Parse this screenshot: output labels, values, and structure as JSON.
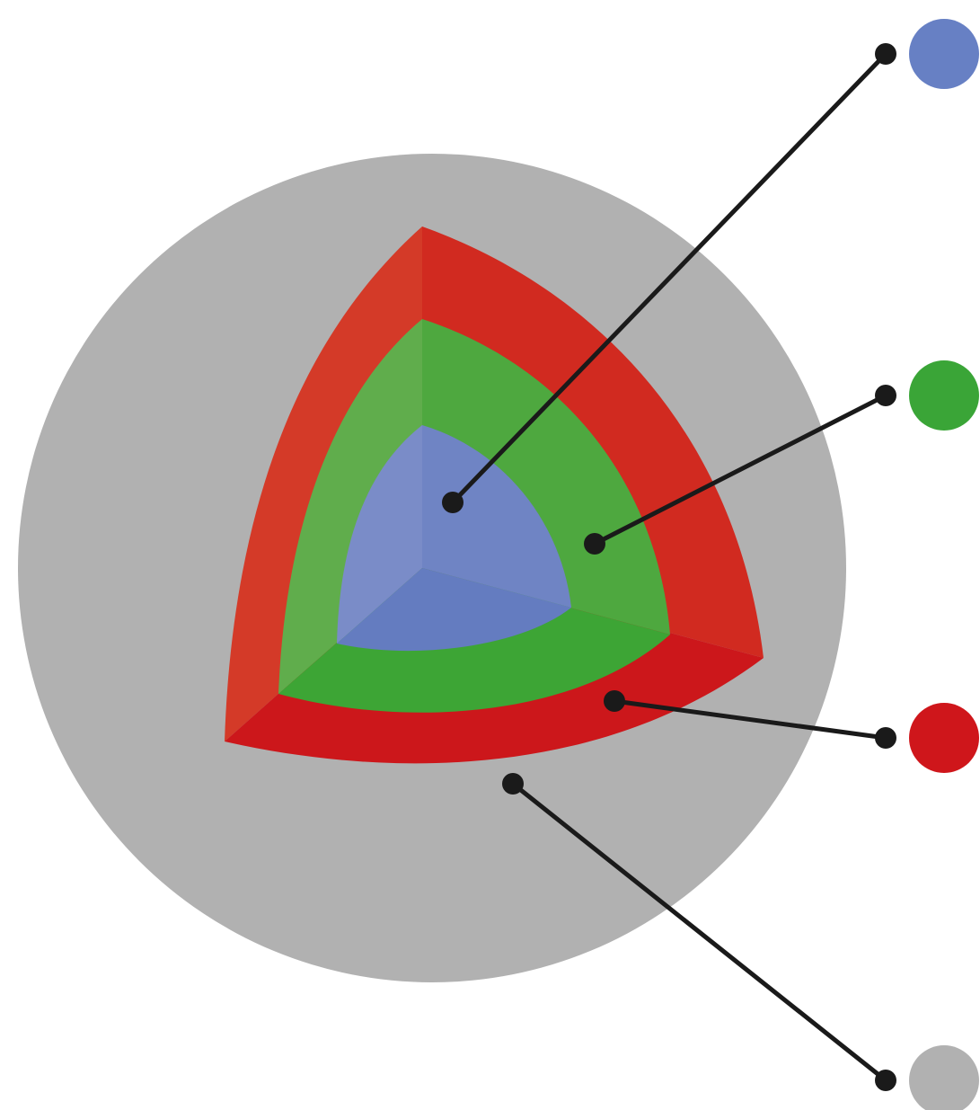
{
  "colors": {
    "background": "#ffffff",
    "outer_sphere": "#b1b1b1",
    "red_layer": "#d12a20",
    "red_layer_light": "#d43a28",
    "red_layer_bottom": "#cc171b",
    "green_layer": "#4ea83f",
    "green_layer_light": "#60ad4c",
    "green_layer_bottom": "#3da535",
    "blue_core": "#6f84c4",
    "blue_core_light": "#7a8cc8",
    "blue_core_bottom": "#647cc0",
    "leader_line": "#1a1a1a",
    "legend_blue": "#6780c4",
    "legend_green": "#3aa537",
    "legend_red": "#cf161b",
    "legend_gray": "#b1b1b1"
  },
  "legend": [
    {
      "id": "blue",
      "icon": "blue-circle"
    },
    {
      "id": "green",
      "icon": "green-circle"
    },
    {
      "id": "red",
      "icon": "red-circle"
    },
    {
      "id": "gray",
      "icon": "gray-circle"
    }
  ]
}
